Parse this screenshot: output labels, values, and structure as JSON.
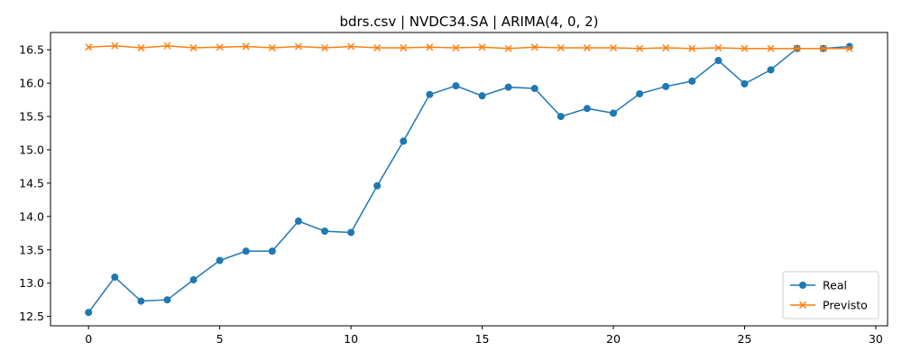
{
  "chart_data": {
    "type": "line",
    "title": "bdrs.csv | NVDC34.SA | ARIMA(4, 0, 2)",
    "xlabel": "",
    "ylabel": "",
    "xlim": [
      -1.45,
      30.45
    ],
    "ylim": [
      12.36,
      16.76
    ],
    "xticks": [
      0,
      5,
      10,
      15,
      20,
      25,
      30
    ],
    "yticks": [
      12.5,
      13.0,
      13.5,
      14.0,
      14.5,
      15.0,
      15.5,
      16.0,
      16.5
    ],
    "grid": false,
    "legend_position": "lower-right",
    "x": [
      0,
      1,
      2,
      3,
      4,
      5,
      6,
      7,
      8,
      9,
      10,
      11,
      12,
      13,
      14,
      15,
      16,
      17,
      18,
      19,
      20,
      21,
      22,
      23,
      24,
      25,
      26,
      27,
      28,
      29
    ],
    "series": [
      {
        "name": "Real",
        "color": "#1f77b4",
        "marker": "circle",
        "values": [
          12.56,
          13.09,
          12.73,
          12.75,
          13.05,
          13.34,
          13.48,
          13.48,
          13.93,
          13.78,
          13.76,
          14.46,
          15.13,
          15.83,
          15.96,
          15.81,
          15.94,
          15.92,
          15.5,
          15.62,
          15.55,
          15.84,
          15.95,
          16.03,
          16.34,
          15.99,
          16.2,
          16.52,
          16.52,
          16.55
        ]
      },
      {
        "name": "Previsto",
        "color": "#ff7f0e",
        "marker": "x",
        "values": [
          16.54,
          16.56,
          16.53,
          16.56,
          16.53,
          16.54,
          16.55,
          16.53,
          16.55,
          16.53,
          16.55,
          16.53,
          16.53,
          16.54,
          16.53,
          16.54,
          16.52,
          16.54,
          16.53,
          16.53,
          16.53,
          16.52,
          16.53,
          16.52,
          16.53,
          16.52,
          16.52,
          16.52,
          16.52,
          16.52
        ]
      }
    ]
  }
}
